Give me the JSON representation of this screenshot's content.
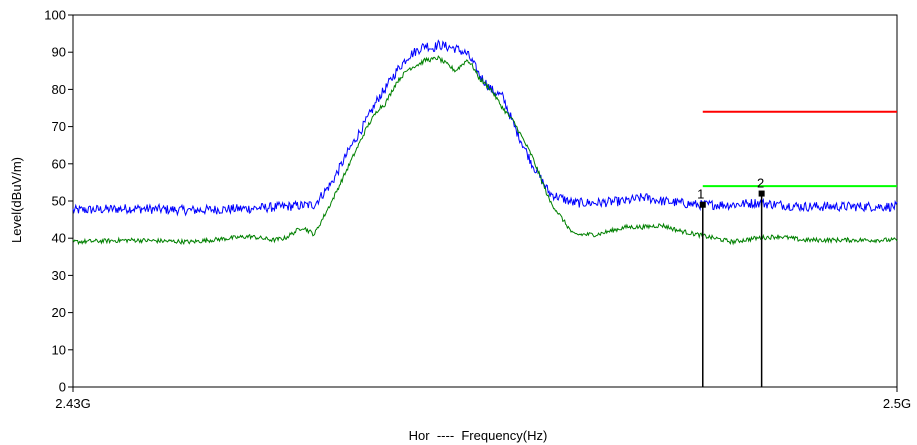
{
  "chart_data": {
    "type": "line",
    "title": "",
    "xlabel": "Hor  ----  Frequency(Hz)",
    "ylabel": "Level(dBuV/m)",
    "xlim": [
      2.43,
      2.5
    ],
    "ylim": [
      0,
      100
    ],
    "x_unit_note": "GHz",
    "x_tick_labels": [
      {
        "x": 2.43,
        "label": "2.43G"
      },
      {
        "x": 2.5,
        "label": "2.5G"
      }
    ],
    "y_ticks": [
      0,
      10,
      20,
      30,
      40,
      50,
      60,
      70,
      80,
      90,
      100
    ],
    "grid": false,
    "series": [
      {
        "color": "#0000ff",
        "x": [
          2.43,
          2.435,
          2.44,
          2.445,
          2.448,
          2.4505,
          2.452,
          2.4535,
          2.455,
          2.456,
          2.4565,
          2.4575,
          2.4585,
          2.4595,
          2.46,
          2.4605,
          2.461,
          2.4625,
          2.4635,
          2.464,
          2.4645,
          2.4655,
          2.4665,
          2.4675,
          2.469,
          2.4705,
          2.4725,
          2.4745,
          2.477,
          2.4785,
          2.48,
          2.4815,
          2.483,
          2.4845,
          2.486,
          2.488,
          2.49,
          2.492,
          2.495,
          2.4975,
          2.5
        ],
        "y": [
          47.5,
          48,
          47.5,
          48,
          48.5,
          49,
          55,
          64,
          72,
          78,
          80,
          85,
          89,
          91,
          92,
          91,
          92,
          91,
          89.5,
          87,
          84,
          80,
          78,
          70,
          60,
          52,
          49.5,
          49.5,
          50,
          51,
          50,
          49.5,
          49,
          49,
          49,
          49.5,
          49,
          48.5,
          48.5,
          48.5,
          48.5
        ]
      },
      {
        "color": "#008000",
        "x": [
          2.43,
          2.435,
          2.44,
          2.445,
          2.447,
          2.448,
          2.4495,
          2.4505,
          2.452,
          2.4535,
          2.455,
          2.456,
          2.4565,
          2.4575,
          2.4585,
          2.4595,
          2.46,
          2.4605,
          2.461,
          2.4625,
          2.4635,
          2.464,
          2.4645,
          2.4655,
          2.4665,
          2.4675,
          2.469,
          2.4705,
          2.4725,
          2.4745,
          2.477,
          2.4785,
          2.48,
          2.4815,
          2.483,
          2.4845,
          2.486,
          2.488,
          2.49,
          2.492,
          2.495,
          2.4975,
          2.5
        ],
        "y": [
          39,
          39.5,
          39,
          40.5,
          39.5,
          40,
          43,
          41,
          50,
          60,
          70,
          75,
          76,
          82,
          85.5,
          87,
          88,
          88,
          88.5,
          85,
          88,
          86,
          83,
          80,
          75,
          71,
          62,
          50,
          41,
          41,
          43,
          43,
          43.5,
          42,
          41,
          40,
          39,
          40,
          40.5,
          39.5,
          39.5,
          39.5,
          39.5
        ]
      }
    ],
    "limit_lines": [
      {
        "color": "#ff0000",
        "x": [
          2.4835,
          2.5
        ],
        "y": [
          74,
          74
        ]
      },
      {
        "color": "#00ff00",
        "x": [
          2.4835,
          2.5
        ],
        "y": [
          54,
          54
        ]
      }
    ],
    "markers": [
      {
        "label": "1",
        "x": 2.4835,
        "y": 49
      },
      {
        "label": "2",
        "x": 2.4885,
        "y": 52
      }
    ]
  }
}
